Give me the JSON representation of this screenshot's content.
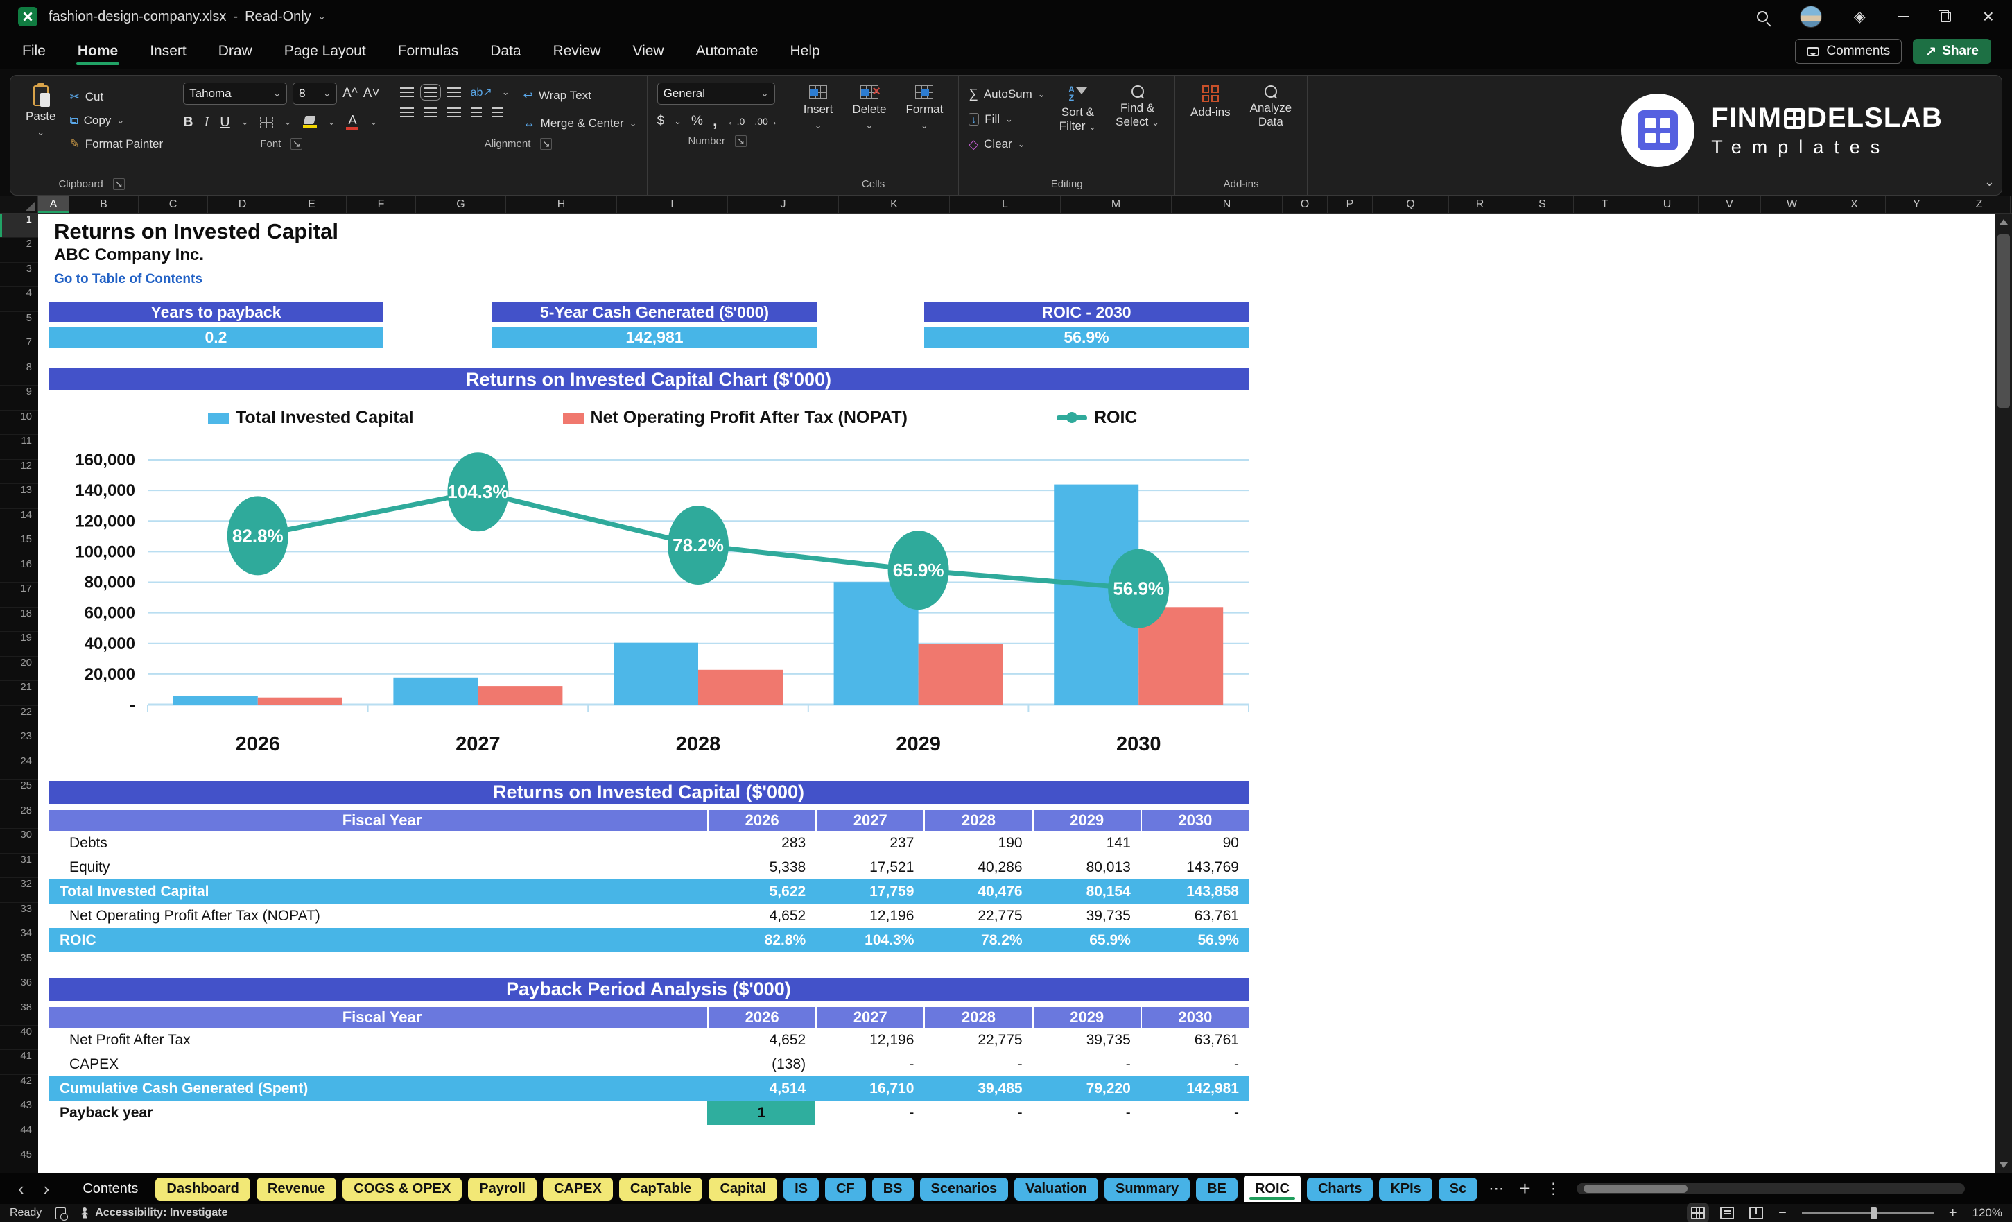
{
  "titlebar": {
    "filename": "fashion-design-company.xlsx",
    "separator": "-",
    "mode": "Read-Only"
  },
  "menu": {
    "tabs": [
      "File",
      "Home",
      "Insert",
      "Draw",
      "Page Layout",
      "Formulas",
      "Data",
      "Review",
      "View",
      "Automate",
      "Help"
    ],
    "active": "Home",
    "comments_label": "Comments",
    "share_label": "Share"
  },
  "ribbon": {
    "clipboard": {
      "paste": "Paste",
      "cut": "Cut",
      "copy": "Copy",
      "format_painter": "Format Painter",
      "label": "Clipboard"
    },
    "font": {
      "name": "Tahoma",
      "size": "8",
      "label": "Font"
    },
    "alignment": {
      "wrap": "Wrap Text",
      "merge": "Merge & Center",
      "label": "Alignment"
    },
    "number": {
      "format": "General",
      "label": "Number"
    },
    "cells": {
      "insert": "Insert",
      "delete": "Delete",
      "format": "Format",
      "label": "Cells"
    },
    "editing": {
      "autosum": "AutoSum",
      "fill": "Fill",
      "clear": "Clear",
      "sort1": "Sort &",
      "sort2": "Filter",
      "find1": "Find &",
      "find2": "Select",
      "label": "Editing"
    },
    "addins": {
      "addins": "Add-ins",
      "analyze1": "Analyze",
      "analyze2": "Data",
      "label": "Add-ins"
    }
  },
  "icons": {
    "chevron_down": "⌄",
    "cut": "✂",
    "copy": "⧉",
    "format_painter": "✎",
    "font_grow": "A^",
    "font_shrink": "A˅",
    "bold": "B",
    "italic": "I",
    "underline": "U",
    "font_color": "A",
    "wrap": "↩",
    "merge": "↔",
    "orientation": "ab↗",
    "dollar": "$",
    "percent": "%",
    "comma": ",",
    "inc_decimal": "←.0",
    "dec_decimal": ".00→",
    "autosum": "∑",
    "fill_arrow": "↓",
    "clear": "◇",
    "sort_a": "A",
    "sort_z": "Z",
    "launcher": "↘",
    "ellipsis": "⋯",
    "kebab": "⋮",
    "plus": "+",
    "prev": "‹",
    "next": "›",
    "diamond": "◈",
    "share_arrow": "↗",
    "delete_x": "×",
    "ab": "ab"
  },
  "brand": {
    "name_pre": "FINM",
    "name_post": "DELSLAB",
    "tagline": "Templates"
  },
  "sheet": {
    "columns": [
      "A",
      "B",
      "C",
      "D",
      "E",
      "F",
      "G",
      "H",
      "I",
      "J",
      "K",
      "L",
      "M",
      "N",
      "O",
      "P",
      "Q",
      "R",
      "S",
      "T",
      "U",
      "V",
      "W",
      "X",
      "Y",
      "Z"
    ],
    "selected_column": "A",
    "rows": [
      "1",
      "2",
      "3",
      "4",
      "5",
      "7",
      "8",
      "9",
      "10",
      "11",
      "12",
      "13",
      "14",
      "15",
      "16",
      "17",
      "18",
      "19",
      "20",
      "21",
      "22",
      "23",
      "24",
      "25",
      "28",
      "30",
      "31",
      "32",
      "33",
      "34",
      "35",
      "36",
      "38",
      "40",
      "41",
      "42",
      "43",
      "44",
      "45"
    ],
    "title": "Returns on Invested Capital",
    "company": "ABC Company Inc.",
    "link": "Go to Table of Contents"
  },
  "kpis": [
    {
      "label": "Years to payback",
      "value": "0.2"
    },
    {
      "label": "5-Year Cash Generated ($'000)",
      "value": "142,981"
    },
    {
      "label": "ROIC - 2030",
      "value": "56.9%"
    }
  ],
  "chart_data": {
    "type": "combo",
    "title": "Returns on Invested Capital Chart ($'000)",
    "categories": [
      "2026",
      "2027",
      "2028",
      "2029",
      "2030"
    ],
    "series": [
      {
        "name": "Total Invested Capital",
        "type": "bar",
        "color": "#4db7e8",
        "values": [
          5622,
          17759,
          40476,
          80154,
          143858
        ]
      },
      {
        "name": "Net Operating Profit After Tax (NOPAT)",
        "type": "bar",
        "color": "#f0786e",
        "values": [
          4652,
          12196,
          22775,
          39735,
          63761
        ]
      },
      {
        "name": "ROIC",
        "type": "line",
        "axis": "secondary",
        "color": "#2faa9b",
        "values": [
          82.8,
          104.3,
          78.2,
          65.9,
          56.9
        ],
        "labels": [
          "82.8%",
          "104.3%",
          "78.2%",
          "65.9%",
          "56.9%"
        ]
      }
    ],
    "ylim": [
      0,
      160000
    ],
    "secondary_ylim": [
      0,
      120
    ],
    "yticks": [
      {
        "value": 0,
        "label": "-"
      },
      {
        "value": 20000,
        "label": "20,000"
      },
      {
        "value": 40000,
        "label": "40,000"
      },
      {
        "value": 60000,
        "label": "60,000"
      },
      {
        "value": 80000,
        "label": "80,000"
      },
      {
        "value": 100000,
        "label": "100,000"
      },
      {
        "value": 120000,
        "label": "120,000"
      },
      {
        "value": 140000,
        "label": "140,000"
      },
      {
        "value": 160000,
        "label": "160,000"
      }
    ],
    "grid": true,
    "legend_position": "top"
  },
  "table1": {
    "title": "Returns on Invested Capital ($'000)",
    "columns": [
      "Fiscal Year",
      "2026",
      "2027",
      "2028",
      "2029",
      "2030"
    ],
    "rows": [
      {
        "label": "Debts",
        "values": [
          "283",
          "237",
          "190",
          "141",
          "90"
        ],
        "style": "plain"
      },
      {
        "label": "Equity",
        "values": [
          "5,338",
          "17,521",
          "40,286",
          "80,013",
          "143,769"
        ],
        "style": "plain"
      },
      {
        "label": "Total Invested Capital",
        "values": [
          "5,622",
          "17,759",
          "40,476",
          "80,154",
          "143,858"
        ],
        "style": "highlight"
      },
      {
        "label": "Net Operating Profit After Tax (NOPAT)",
        "values": [
          "4,652",
          "12,196",
          "22,775",
          "39,735",
          "63,761"
        ],
        "style": "plain"
      },
      {
        "label": "ROIC",
        "values": [
          "82.8%",
          "104.3%",
          "78.2%",
          "65.9%",
          "56.9%"
        ],
        "style": "highlight"
      }
    ]
  },
  "table2": {
    "title": "Payback Period Analysis ($'000)",
    "columns": [
      "Fiscal Year",
      "2026",
      "2027",
      "2028",
      "2029",
      "2030"
    ],
    "rows": [
      {
        "label": "Net Profit After Tax",
        "values": [
          "4,652",
          "12,196",
          "22,775",
          "39,735",
          "63,761"
        ],
        "style": "plain"
      },
      {
        "label": "CAPEX",
        "values": [
          "(138)",
          "-",
          "-",
          "-",
          "-"
        ],
        "style": "plain"
      },
      {
        "label": "Cumulative Cash Generated (Spent)",
        "values": [
          "4,514",
          "16,710",
          "39,485",
          "79,220",
          "142,981"
        ],
        "style": "highlight"
      },
      {
        "label": "Payback year",
        "values": [
          "1",
          "-",
          "-",
          "-",
          "-"
        ],
        "style": "payback"
      }
    ]
  },
  "sheet_tabs": {
    "items": [
      {
        "label": "Contents",
        "style": "plain"
      },
      {
        "label": "Dashboard",
        "style": "yellow"
      },
      {
        "label": "Revenue",
        "style": "yellow"
      },
      {
        "label": "COGS & OPEX",
        "style": "yellow"
      },
      {
        "label": "Payroll",
        "style": "yellow"
      },
      {
        "label": "CAPEX",
        "style": "yellow"
      },
      {
        "label": "CapTable",
        "style": "yellow"
      },
      {
        "label": "Capital",
        "style": "yellow"
      },
      {
        "label": "IS",
        "style": "blue"
      },
      {
        "label": "CF",
        "style": "blue"
      },
      {
        "label": "BS",
        "style": "blue"
      },
      {
        "label": "Scenarios",
        "style": "blue"
      },
      {
        "label": "Valuation",
        "style": "blue"
      },
      {
        "label": "Summary",
        "style": "blue"
      },
      {
        "label": "BE",
        "style": "blue"
      },
      {
        "label": "ROIC",
        "style": "active"
      },
      {
        "label": "Charts",
        "style": "blue"
      },
      {
        "label": "KPIs",
        "style": "blue"
      },
      {
        "label": "Sc",
        "style": "blue"
      }
    ]
  },
  "statusbar": {
    "ready": "Ready",
    "accessibility": "Accessibility: Investigate",
    "zoom": "120%"
  },
  "colors": {
    "accent_indigo": "#4352c9",
    "header_periwinkle": "#6a78de",
    "highlight_cyan": "#47b5e7",
    "payback_teal": "#2fae9e",
    "tab_yellow": "#f2e876",
    "tab_blue": "#47b2e6",
    "excel_green": "#21a366"
  }
}
